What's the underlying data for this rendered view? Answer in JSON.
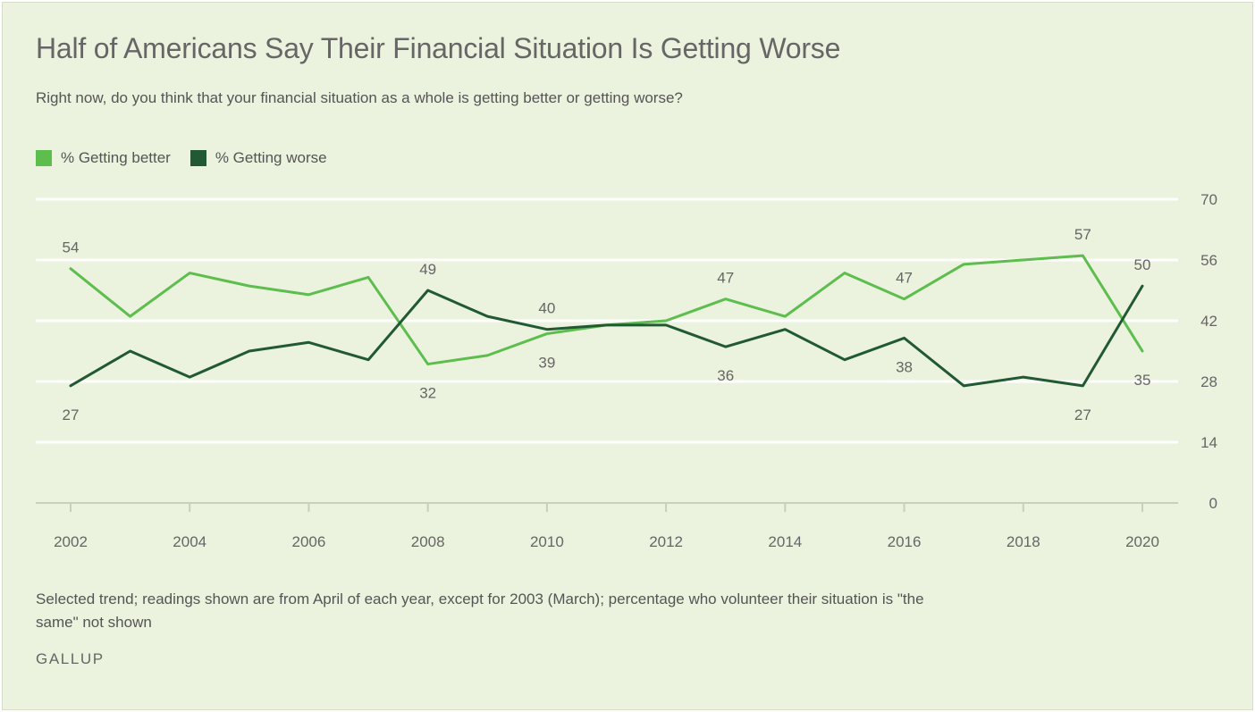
{
  "chart_data": {
    "type": "line",
    "title": "Half of Americans Say Their Financial Situation Is Getting Worse",
    "subtitle": "Right now, do you think that your financial situation as a whole is getting better or getting worse?",
    "x": [
      2002,
      2003,
      2004,
      2005,
      2006,
      2007,
      2008,
      2009,
      2010,
      2011,
      2012,
      2013,
      2014,
      2015,
      2016,
      2017,
      2018,
      2019,
      2020
    ],
    "x_tick_labels": [
      "2002",
      "2004",
      "2006",
      "2008",
      "2010",
      "2012",
      "2014",
      "2016",
      "2018",
      "2020"
    ],
    "y_ticks": [
      0,
      14,
      28,
      42,
      56,
      70
    ],
    "ylim": [
      0,
      70
    ],
    "grid": true,
    "legend_position": "top-left",
    "y_axis_side": "right",
    "series": [
      {
        "name": "% Getting better",
        "color": "#5dbe4e",
        "values": [
          54,
          43,
          53,
          50,
          48,
          52,
          32,
          34,
          39,
          41,
          42,
          47,
          43,
          53,
          47,
          55,
          56,
          57,
          35
        ],
        "labels": [
          {
            "x": 2002,
            "text": "54",
            "pos": "above"
          },
          {
            "x": 2008,
            "text": "32",
            "pos": "below"
          },
          {
            "x": 2010,
            "text": "39",
            "pos": "below"
          },
          {
            "x": 2013,
            "text": "47",
            "pos": "above"
          },
          {
            "x": 2016,
            "text": "47",
            "pos": "above"
          },
          {
            "x": 2019,
            "text": "57",
            "pos": "above"
          },
          {
            "x": 2020,
            "text": "35",
            "pos": "below"
          }
        ]
      },
      {
        "name": "% Getting worse",
        "color": "#215a32",
        "values": [
          27,
          35,
          29,
          35,
          37,
          33,
          49,
          43,
          40,
          41,
          41,
          36,
          40,
          33,
          38,
          27,
          29,
          27,
          50
        ],
        "labels": [
          {
            "x": 2002,
            "text": "27",
            "pos": "below"
          },
          {
            "x": 2008,
            "text": "49",
            "pos": "above"
          },
          {
            "x": 2010,
            "text": "40",
            "pos": "above"
          },
          {
            "x": 2013,
            "text": "36",
            "pos": "below"
          },
          {
            "x": 2016,
            "text": "38",
            "pos": "below"
          },
          {
            "x": 2019,
            "text": "27",
            "pos": "below"
          },
          {
            "x": 2020,
            "text": "50",
            "pos": "above"
          }
        ]
      }
    ]
  },
  "note": "Selected trend; readings shown are from April of each year, except for 2003 (March); percentage who volunteer their situation is \"the same\" not shown",
  "source": "GALLUP",
  "colors": {
    "background": "#ebf2de",
    "gridline": "#ffffff",
    "axis_line": "#c8cfbd",
    "text": "#666666"
  }
}
